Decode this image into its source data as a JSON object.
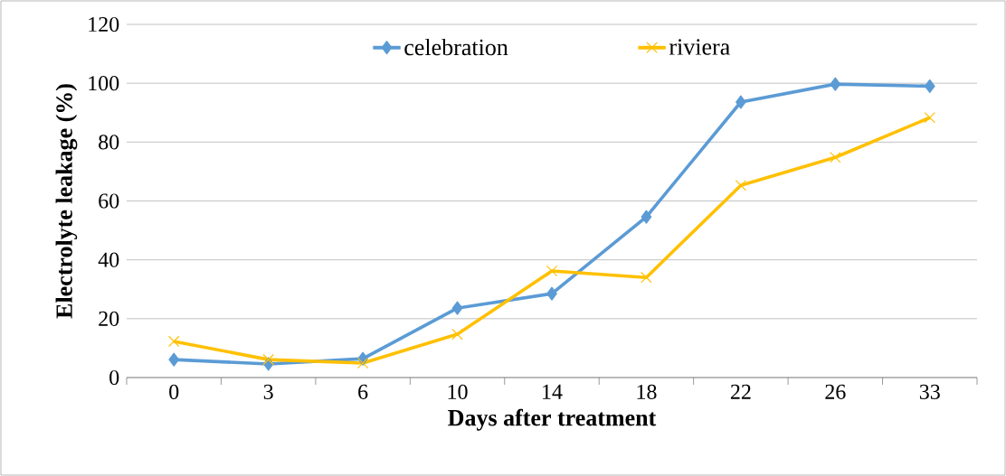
{
  "chart_data": {
    "type": "line",
    "xlabel": "Days after treatment",
    "ylabel": "Electrolyte leakage (%)",
    "categories": [
      "0",
      "3",
      "6",
      "10",
      "14",
      "18",
      "22",
      "26",
      "33"
    ],
    "series": [
      {
        "name": "celebration",
        "color": "#5b9bd5",
        "marker": "diamond",
        "values": [
          6.1,
          4.6,
          6.4,
          23.6,
          28.5,
          54.6,
          93.6,
          99.7,
          99
        ]
      },
      {
        "name": "riviera",
        "color": "#ffc000",
        "marker": "cross",
        "values": [
          12.3,
          6.1,
          4.9,
          14.7,
          36.2,
          34,
          65.3,
          74.8,
          88.3
        ]
      }
    ],
    "ylim": [
      0,
      120
    ],
    "yticks": [
      0,
      20,
      40,
      60,
      80,
      100,
      120
    ],
    "grid": "y",
    "legend": "top",
    "line_style": "solid"
  }
}
